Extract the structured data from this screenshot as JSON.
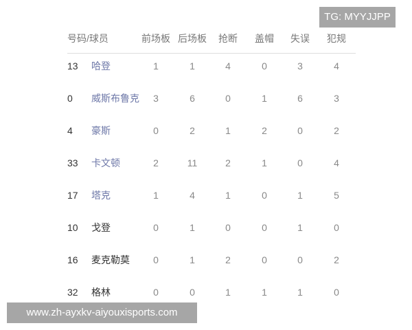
{
  "watermark_top": "TG: MYYJJPP",
  "watermark_bottom": "www.zh-ayxkv-aiyouxisports.com",
  "colors": {
    "link": "#6e78a8",
    "header": "#777777"
  },
  "headers": [
    "号码/球员",
    "前场板",
    "后场板",
    "抢断",
    "盖帽",
    "失误",
    "犯规"
  ],
  "rows": [
    {
      "num": "13",
      "name": "哈登",
      "link": true,
      "stats": [
        "1",
        "1",
        "4",
        "0",
        "3",
        "4"
      ]
    },
    {
      "num": "0",
      "name": "威斯布鲁克",
      "link": true,
      "stats": [
        "3",
        "6",
        "0",
        "1",
        "6",
        "3"
      ]
    },
    {
      "num": "4",
      "name": "豪斯",
      "link": true,
      "stats": [
        "0",
        "2",
        "1",
        "2",
        "0",
        "2"
      ]
    },
    {
      "num": "33",
      "name": "卡文顿",
      "link": true,
      "stats": [
        "2",
        "11",
        "2",
        "1",
        "0",
        "4"
      ]
    },
    {
      "num": "17",
      "name": "塔克",
      "link": true,
      "stats": [
        "1",
        "4",
        "1",
        "0",
        "1",
        "5"
      ]
    },
    {
      "num": "10",
      "name": "戈登",
      "link": false,
      "stats": [
        "0",
        "1",
        "0",
        "0",
        "1",
        "0"
      ]
    },
    {
      "num": "16",
      "name": "麦克勒莫",
      "link": false,
      "stats": [
        "0",
        "1",
        "2",
        "0",
        "0",
        "2"
      ]
    },
    {
      "num": "32",
      "name": "格林",
      "link": false,
      "stats": [
        "0",
        "0",
        "1",
        "1",
        "1",
        "0"
      ]
    }
  ]
}
